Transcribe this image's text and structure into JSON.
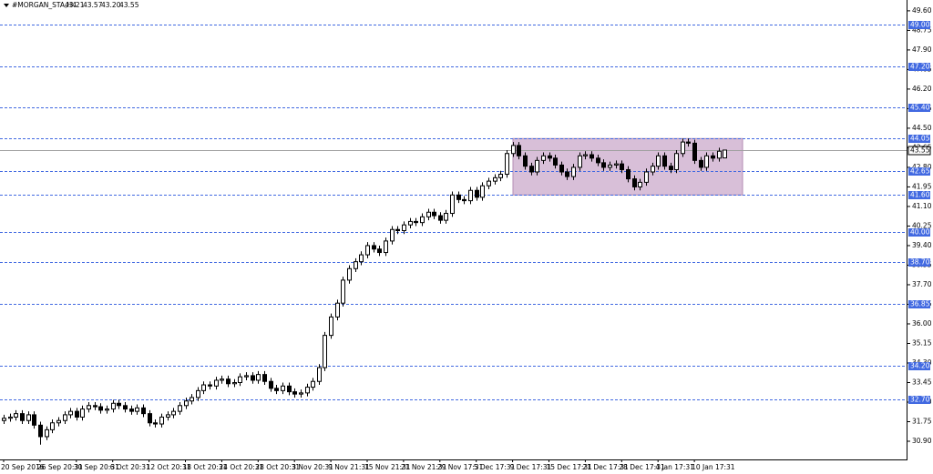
{
  "chart_data": {
    "type": "candlestick",
    "symbol": "#MORGAN_STA,H4",
    "header_values": [
      "43.21",
      "43.57",
      "43.20",
      "43.55"
    ],
    "categories": [
      "20 Sep 2016",
      null,
      null,
      null,
      null,
      null,
      "26 Sep 20:31",
      null,
      null,
      null,
      null,
      null,
      "30 Sep 20:31",
      null,
      null,
      null,
      null,
      null,
      "6 Oct 20:31",
      null,
      null,
      null,
      null,
      null,
      "12 Oct 20:31",
      null,
      null,
      null,
      null,
      null,
      "18 Oct 20:31",
      null,
      null,
      null,
      null,
      null,
      "24 Oct 20:31",
      null,
      null,
      null,
      null,
      null,
      "28 Oct 20:31",
      null,
      null,
      null,
      null,
      null,
      "3 Nov 20:31",
      null,
      null,
      null,
      null,
      null,
      "9 Nov 21:31",
      null,
      null,
      null,
      null,
      null,
      "15 Nov 21:31",
      null,
      null,
      null,
      null,
      null,
      "21 Nov 21:31",
      null,
      null,
      null,
      null,
      null,
      "29 Nov 17:31",
      null,
      null,
      null,
      null,
      null,
      "5 Dec 17:31",
      null,
      null,
      null,
      null,
      null,
      "9 Dec 17:31",
      null,
      null,
      null,
      null,
      null,
      "15 Dec 17:31",
      null,
      null,
      null,
      null,
      null,
      "21 Dec 17:31",
      null,
      null,
      null,
      null,
      null,
      "28 Dec 17:31",
      null,
      null,
      null,
      null,
      null,
      "4 Jan 17:31",
      null,
      null,
      null,
      null,
      null,
      "10 Jan 17:31",
      null,
      null,
      null,
      null,
      null
    ],
    "open": [
      31.8,
      31.9,
      31.95,
      32.1,
      31.8,
      32.05,
      31.6,
      31.1,
      31.4,
      31.7,
      31.8,
      32.05,
      32.2,
      31.95,
      32.3,
      32.45,
      32.4,
      32.25,
      32.3,
      32.55,
      32.45,
      32.3,
      32.2,
      32.35,
      32.1,
      31.7,
      31.65,
      31.95,
      32.05,
      32.2,
      32.45,
      32.65,
      32.8,
      33.1,
      33.35,
      33.3,
      33.55,
      33.6,
      33.4,
      33.45,
      33.7,
      33.75,
      33.55,
      33.8,
      33.5,
      33.2,
      33.1,
      33.3,
      33.05,
      32.95,
      33.0,
      33.25,
      33.5,
      34.1,
      35.5,
      36.3,
      36.9,
      37.9,
      38.4,
      38.7,
      39.0,
      39.4,
      39.25,
      39.1,
      39.6,
      40.1,
      40.05,
      40.3,
      40.45,
      40.4,
      40.65,
      40.85,
      40.7,
      40.5,
      40.8,
      41.6,
      41.4,
      41.35,
      41.8,
      41.5,
      42.0,
      42.2,
      42.35,
      42.5,
      43.4,
      43.75,
      43.3,
      42.85,
      42.6,
      43.1,
      43.3,
      43.2,
      42.9,
      42.6,
      42.4,
      42.8,
      43.3,
      43.35,
      43.2,
      43.0,
      42.8,
      42.9,
      42.95,
      42.7,
      42.3,
      41.95,
      42.15,
      42.6,
      42.85,
      43.3,
      42.85,
      42.7,
      43.4,
      43.9,
      43.85,
      43.1,
      42.8,
      43.3,
      43.2,
      43.21
    ],
    "high": [
      32.05,
      32.1,
      32.25,
      32.25,
      32.2,
      32.2,
      31.75,
      31.55,
      31.85,
      31.95,
      32.2,
      32.35,
      32.35,
      32.45,
      32.6,
      32.6,
      32.55,
      32.45,
      32.7,
      32.7,
      32.6,
      32.45,
      32.5,
      32.5,
      32.25,
      31.85,
      32.1,
      32.2,
      32.35,
      32.6,
      32.8,
      32.95,
      33.25,
      33.5,
      33.5,
      33.7,
      33.75,
      33.75,
      33.6,
      33.85,
      33.9,
      33.9,
      33.95,
      33.95,
      33.65,
      33.35,
      33.45,
      33.45,
      33.2,
      33.15,
      33.4,
      33.65,
      34.25,
      35.65,
      36.45,
      37.05,
      38.05,
      38.55,
      38.85,
      39.15,
      39.55,
      39.55,
      39.4,
      39.75,
      40.25,
      40.25,
      40.45,
      40.6,
      40.6,
      40.8,
      41.0,
      41.0,
      40.85,
      40.95,
      41.75,
      41.75,
      41.55,
      41.95,
      41.95,
      42.15,
      42.35,
      42.5,
      42.65,
      43.55,
      43.9,
      43.9,
      43.45,
      43.0,
      43.25,
      43.45,
      43.45,
      43.35,
      43.05,
      42.75,
      42.95,
      43.45,
      43.5,
      43.5,
      43.35,
      43.15,
      43.05,
      43.1,
      43.1,
      42.85,
      42.45,
      42.3,
      42.75,
      43.0,
      43.45,
      43.45,
      43.0,
      43.55,
      44.05,
      44.05,
      44.0,
      43.25,
      43.45,
      43.45,
      43.65,
      43.57
    ],
    "low": [
      31.65,
      31.75,
      31.8,
      31.65,
      31.65,
      31.45,
      30.75,
      30.95,
      31.25,
      31.55,
      31.65,
      31.9,
      31.8,
      31.8,
      32.15,
      32.25,
      32.1,
      32.1,
      32.15,
      32.3,
      32.15,
      32.05,
      32.05,
      31.95,
      31.55,
      31.5,
      31.5,
      31.8,
      31.9,
      32.05,
      32.3,
      32.5,
      32.65,
      32.95,
      33.15,
      33.15,
      33.4,
      33.25,
      33.25,
      33.3,
      33.55,
      33.4,
      33.4,
      33.35,
      33.05,
      32.95,
      32.95,
      32.9,
      32.8,
      32.8,
      32.85,
      33.1,
      33.35,
      33.95,
      35.35,
      36.15,
      36.75,
      37.75,
      38.25,
      38.55,
      38.85,
      39.1,
      38.95,
      38.95,
      39.45,
      39.9,
      39.9,
      40.15,
      40.25,
      40.25,
      40.5,
      40.55,
      40.35,
      40.35,
      40.65,
      41.25,
      41.2,
      41.2,
      41.35,
      41.35,
      41.85,
      42.05,
      42.2,
      42.35,
      43.25,
      43.15,
      42.7,
      42.45,
      42.45,
      42.95,
      43.05,
      42.75,
      42.45,
      42.25,
      42.25,
      42.65,
      43.15,
      43.05,
      42.85,
      42.65,
      42.65,
      42.75,
      42.55,
      42.15,
      41.8,
      41.8,
      42.0,
      42.45,
      42.7,
      42.7,
      42.55,
      42.55,
      43.25,
      43.7,
      42.95,
      42.65,
      42.65,
      43.05,
      43.05,
      43.2
    ],
    "close": [
      31.9,
      31.95,
      32.1,
      31.8,
      32.05,
      31.6,
      31.1,
      31.4,
      31.7,
      31.8,
      32.05,
      32.2,
      31.95,
      32.3,
      32.45,
      32.4,
      32.25,
      32.3,
      32.55,
      32.45,
      32.3,
      32.2,
      32.35,
      32.1,
      31.7,
      31.65,
      31.95,
      32.05,
      32.2,
      32.45,
      32.65,
      32.8,
      33.1,
      33.35,
      33.3,
      33.55,
      33.6,
      33.4,
      33.45,
      33.7,
      33.75,
      33.55,
      33.8,
      33.5,
      33.2,
      33.1,
      33.3,
      33.05,
      32.95,
      33.0,
      33.25,
      33.5,
      34.1,
      35.5,
      36.3,
      36.9,
      37.9,
      38.4,
      38.7,
      39.0,
      39.4,
      39.25,
      39.1,
      39.6,
      40.1,
      40.05,
      40.3,
      40.45,
      40.4,
      40.65,
      40.85,
      40.7,
      40.5,
      40.8,
      41.6,
      41.4,
      41.35,
      41.8,
      41.5,
      42.0,
      42.2,
      42.35,
      42.5,
      43.4,
      43.75,
      43.3,
      42.85,
      42.6,
      43.1,
      43.3,
      43.2,
      42.9,
      42.6,
      42.4,
      42.8,
      43.3,
      43.35,
      43.2,
      43.0,
      42.8,
      42.9,
      42.95,
      42.7,
      42.3,
      41.95,
      42.15,
      42.6,
      42.85,
      43.3,
      42.85,
      42.7,
      43.4,
      43.9,
      43.85,
      43.1,
      42.8,
      43.3,
      43.2,
      43.5,
      43.55
    ],
    "up_color": "#ffffff",
    "down_color": "#000000",
    "ylim": [
      30.11,
      50.07
    ],
    "yticks": [
      {
        "value": 49.6,
        "label": "49.60"
      },
      48.75,
      {
        "value": 47.9,
        "label": "47.90"
      },
      47.05,
      {
        "value": 46.2,
        "label": "46.20"
      },
      45.35,
      {
        "value": 44.5,
        "label": "44.50"
      },
      43.65,
      {
        "value": 42.8,
        "label": "42.80"
      },
      41.95,
      {
        "value": 41.1,
        "label": "41.10"
      },
      40.25,
      {
        "value": 39.4,
        "label": "39.40"
      },
      38.55,
      {
        "value": 37.7,
        "label": "37.70"
      },
      36.85,
      {
        "value": 36,
        "label": "36.00"
      },
      35.15,
      {
        "value": 34.3,
        "label": "34.30"
      },
      33.45,
      {
        "value": 32.6,
        "label": "32.60"
      },
      31.75,
      {
        "value": 30.9,
        "label": "30.90"
      }
    ],
    "levels": [
      {
        "value": 49,
        "label": "49.00"
      },
      {
        "value": 47.2,
        "label": "47.20"
      },
      {
        "value": 45.4,
        "label": "45.40"
      },
      44.05,
      42.65,
      {
        "value": 41.6,
        "label": "41.60"
      },
      {
        "value": 40,
        "label": "40.00"
      },
      {
        "value": 38.7,
        "label": "38.70"
      },
      36.85,
      {
        "value": 34.2,
        "label": "34.20"
      },
      {
        "value": 32.7,
        "label": "32.70"
      }
    ],
    "level_color": "#4169e1",
    "zone": {
      "range": [
        41.6,
        44.05
      ],
      "color": "#d8bfd8"
    },
    "current_price": 43.55
  }
}
